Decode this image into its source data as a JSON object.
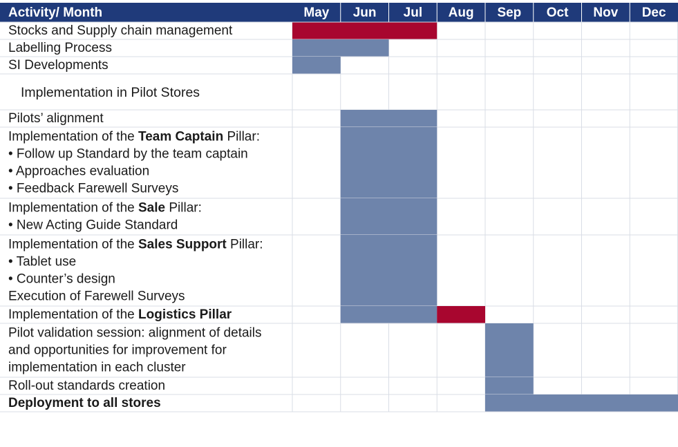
{
  "chart_data": {
    "type": "table",
    "title": "",
    "header_label": "Activity/ Month",
    "months": [
      "May",
      "Jun",
      "Jul",
      "Aug",
      "Sep",
      "Oct",
      "Nov",
      "Dec"
    ],
    "colors": {
      "header": "#1f3a7a",
      "blue_bar": "#6e84ab",
      "red_bar": "#a8062f",
      "grid": "#d9dde6",
      "text": "#1a1a1a"
    },
    "rows": [
      {
        "id": "stocks",
        "lines": [
          [
            {
              "t": "Stocks and Supply chain management",
              "b": false
            }
          ]
        ],
        "bars": [
          {
            "start": "May",
            "end": "Jul",
            "color": "red"
          }
        ]
      },
      {
        "id": "labelling",
        "lines": [
          [
            {
              "t": "Labelling Process",
              "b": false
            }
          ]
        ],
        "bars": [
          {
            "start": "May",
            "end": "Jun",
            "color": "blue"
          }
        ]
      },
      {
        "id": "si-dev",
        "lines": [
          [
            {
              "t": "SI Developments",
              "b": false
            }
          ]
        ],
        "bars": [
          {
            "start": "May",
            "end": "May",
            "color": "blue"
          }
        ]
      },
      {
        "id": "pilot-section",
        "section": true,
        "lines": [
          [
            {
              "t": "Implementation in Pilot Stores",
              "b": false
            }
          ]
        ],
        "bars": []
      },
      {
        "id": "pilots-alignment",
        "lines": [
          [
            {
              "t": "Pilots’ alignment",
              "b": false
            }
          ]
        ],
        "bars": [
          {
            "start": "Jun",
            "end": "Jul",
            "color": "blue"
          }
        ]
      },
      {
        "id": "team-captain",
        "lines": [
          [
            {
              "t": "Implementation of the ",
              "b": false
            },
            {
              "t": "Team Captain",
              "b": true
            },
            {
              "t": " Pillar:",
              "b": false
            }
          ],
          [
            {
              "t": "• Follow up Standard by the team captain",
              "b": false
            }
          ],
          [
            {
              "t": "• Approaches evaluation",
              "b": false
            }
          ],
          [
            {
              "t": "• Feedback Farewell Surveys",
              "b": false
            }
          ]
        ],
        "bars": [
          {
            "start": "Jun",
            "end": "Jul",
            "color": "blue"
          }
        ]
      },
      {
        "id": "sale",
        "lines": [
          [
            {
              "t": "Implementation of the ",
              "b": false
            },
            {
              "t": "Sale",
              "b": true
            },
            {
              "t": " Pillar:",
              "b": false
            }
          ],
          [
            {
              "t": "• New Acting Guide Standard",
              "b": false
            }
          ]
        ],
        "bars": [
          {
            "start": "Jun",
            "end": "Jul",
            "color": "blue"
          }
        ]
      },
      {
        "id": "sales-support",
        "lines": [
          [
            {
              "t": "Implementation of the ",
              "b": false
            },
            {
              "t": "Sales Support",
              "b": true
            },
            {
              "t": " Pillar:",
              "b": false
            }
          ],
          [
            {
              "t": "• Tablet use",
              "b": false
            }
          ],
          [
            {
              "t": "• Counter’s design",
              "b": false
            }
          ],
          [
            {
              "t": "Execution of Farewell Surveys",
              "b": false
            }
          ]
        ],
        "bars": [
          {
            "start": "Jun",
            "end": "Jul",
            "color": "blue"
          }
        ]
      },
      {
        "id": "logistics",
        "lines": [
          [
            {
              "t": "Implementation of the ",
              "b": false
            },
            {
              "t": "Logistics Pillar",
              "b": true
            }
          ]
        ],
        "bars": [
          {
            "start": "Jun",
            "end": "Jul",
            "color": "blue"
          },
          {
            "start": "Aug",
            "end": "Aug",
            "color": "red"
          }
        ]
      },
      {
        "id": "pilot-validation",
        "lines": [
          [
            {
              "t": "Pilot validation session: alignment of details",
              "b": false
            }
          ],
          [
            {
              "t": "and opportunities for improvement for",
              "b": false
            }
          ],
          [
            {
              "t": "implementation in each cluster",
              "b": false
            }
          ]
        ],
        "bars": [
          {
            "start": "Sep",
            "end": "Sep",
            "color": "blue"
          }
        ]
      },
      {
        "id": "rollout",
        "lines": [
          [
            {
              "t": "Roll-out standards creation",
              "b": false
            }
          ]
        ],
        "bars": [
          {
            "start": "Sep",
            "end": "Sep",
            "color": "blue"
          }
        ]
      },
      {
        "id": "deployment",
        "lines": [
          [
            {
              "t": "Deployment to all stores",
              "b": true
            }
          ]
        ],
        "bars": [
          {
            "start": "Sep",
            "end": "Dec",
            "color": "blue"
          }
        ]
      }
    ]
  }
}
